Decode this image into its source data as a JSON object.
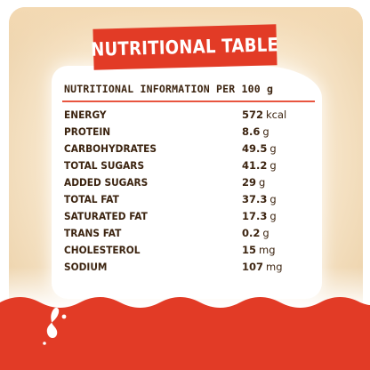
{
  "title": "NUTRITIONAL TABLE",
  "header": "NUTRITIONAL INFORMATION PER 100 g",
  "rows": [
    {
      "name": "ENERGY",
      "value": "572",
      "unit": "kcal"
    },
    {
      "name": "PROTEIN",
      "value": "8.6",
      "unit": "g"
    },
    {
      "name": "CARBOHYDRATES",
      "value": "49.5",
      "unit": "g"
    },
    {
      "name": "TOTAL SUGARS",
      "value": "41.2",
      "unit": "g"
    },
    {
      "name": "ADDED SUGARS",
      "value": "29",
      "unit": "g"
    },
    {
      "name": "TOTAL FAT",
      "value": "37.3",
      "unit": "g"
    },
    {
      "name": "SATURATED FAT",
      "value": "17.3",
      "unit": "g"
    },
    {
      "name": "TRANS FAT",
      "value": "0.2",
      "unit": "g"
    },
    {
      "name": "CHOLESTEROL",
      "value": "15",
      "unit": "mg"
    },
    {
      "name": "SODIUM",
      "value": "107",
      "unit": "mg"
    }
  ],
  "colors": {
    "brand_red": "#e23b26",
    "text_brown": "#3c2410",
    "cream": "#f7e6cb"
  }
}
